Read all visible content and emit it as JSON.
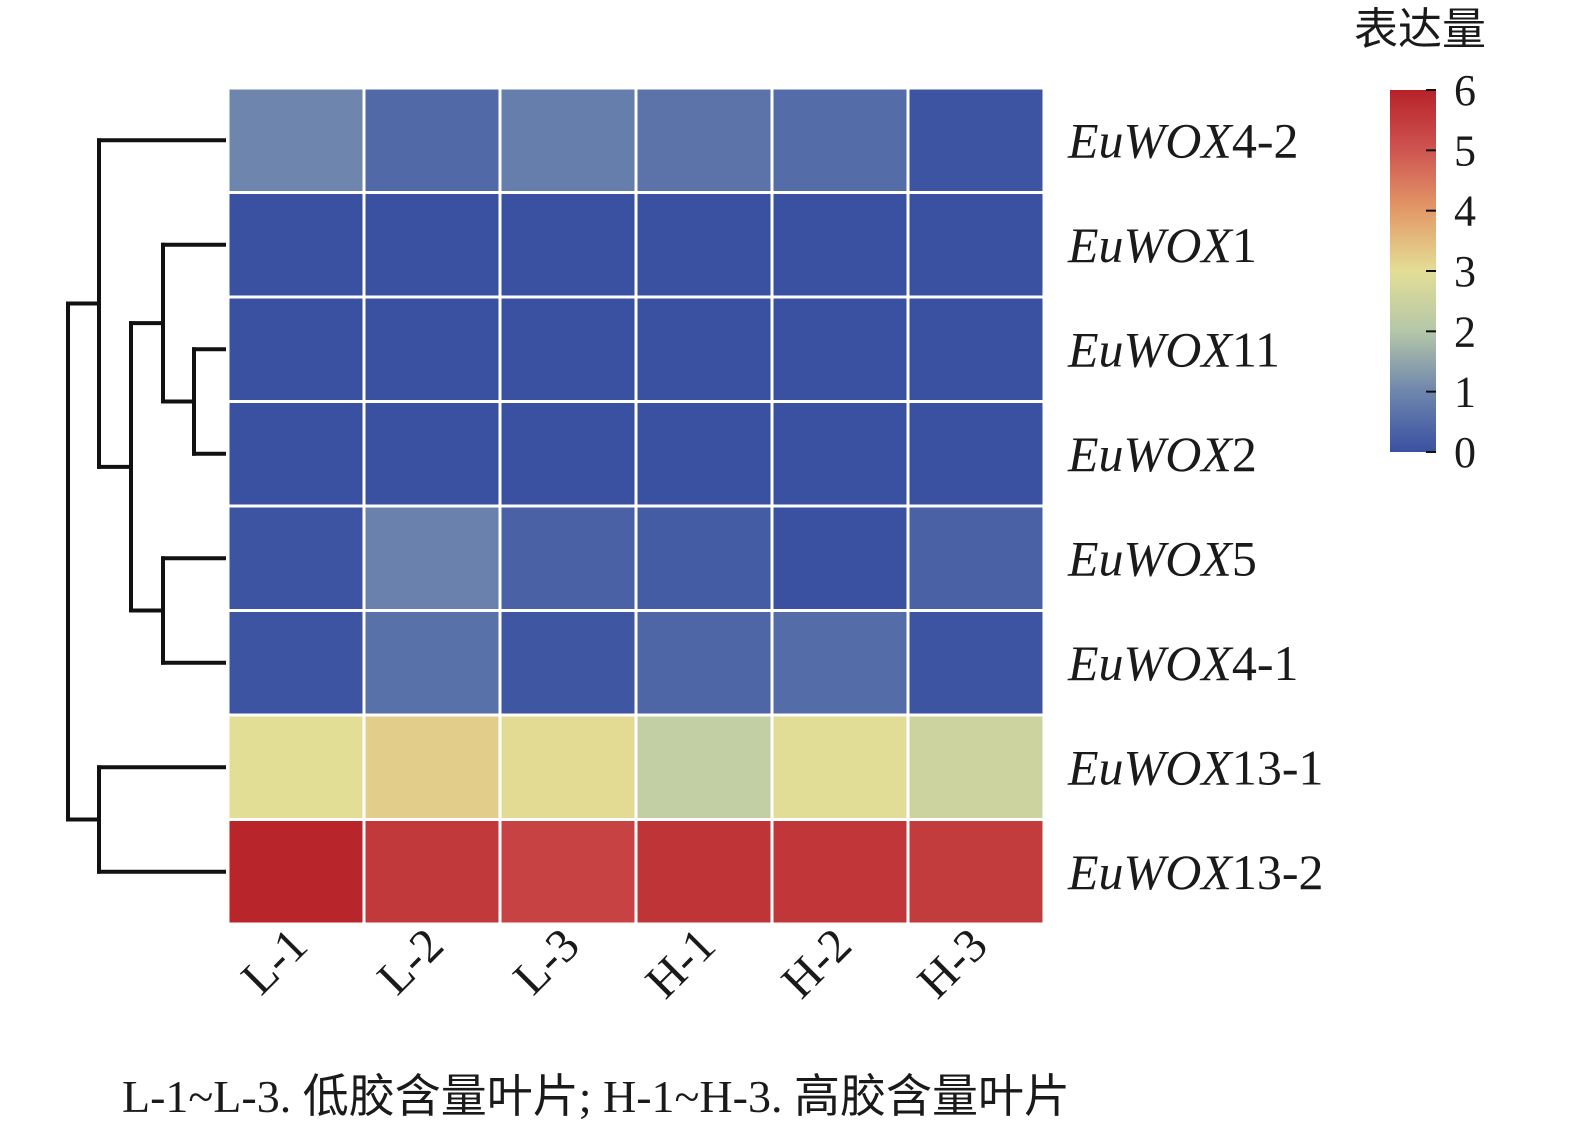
{
  "chart_data": {
    "type": "heatmap",
    "legend_title": "表达量",
    "color_scale": {
      "min": 0,
      "max": 6,
      "ticks": [
        "6",
        "5",
        "4",
        "3",
        "2",
        "1",
        "0"
      ],
      "stops": [
        {
          "value": 0,
          "color": "#3a51a2"
        },
        {
          "value": 1,
          "color": "#6e86ad"
        },
        {
          "value": 2,
          "color": "#b4c7a8"
        },
        {
          "value": 3,
          "color": "#e3de96"
        },
        {
          "value": 4,
          "color": "#e39a68"
        },
        {
          "value": 5,
          "color": "#cf5551"
        },
        {
          "value": 6,
          "color": "#b72229"
        }
      ]
    },
    "columns": [
      "L-1",
      "L-2",
      "L-3",
      "H-1",
      "H-2",
      "H-3"
    ],
    "rows": [
      {
        "italic": "EuWOX",
        "suffix": "4-2",
        "values": [
          1.0,
          0.45,
          0.85,
          0.65,
          0.5,
          0.05
        ]
      },
      {
        "italic": "EuWOX",
        "suffix": "1",
        "values": [
          0.0,
          0.0,
          0.0,
          0.0,
          0.0,
          0.0
        ]
      },
      {
        "italic": "EuWOX",
        "suffix": "11",
        "values": [
          0.0,
          0.0,
          0.0,
          0.0,
          0.0,
          0.0
        ]
      },
      {
        "italic": "EuWOX",
        "suffix": "2",
        "values": [
          0.0,
          0.0,
          0.0,
          0.0,
          0.0,
          0.0
        ]
      },
      {
        "italic": "EuWOX",
        "suffix": "5",
        "values": [
          0.05,
          0.9,
          0.3,
          0.2,
          0.0,
          0.3
        ]
      },
      {
        "italic": "EuWOX",
        "suffix": "4-1",
        "values": [
          0.05,
          0.6,
          0.1,
          0.4,
          0.5,
          0.05
        ]
      },
      {
        "italic": "EuWOX",
        "suffix": "13-1",
        "values": [
          3.0,
          3.25,
          3.05,
          2.3,
          2.95,
          2.5
        ]
      },
      {
        "italic": "EuWOX",
        "suffix": "13-2",
        "values": [
          5.95,
          5.55,
          5.35,
          5.65,
          5.6,
          5.5
        ]
      }
    ],
    "dendrogram": "rows",
    "x_tick_rotation": "-45deg"
  },
  "footnote": "L-1~L-3. 低胶含量叶片; H-1~H-3. 高胶含量叶片"
}
